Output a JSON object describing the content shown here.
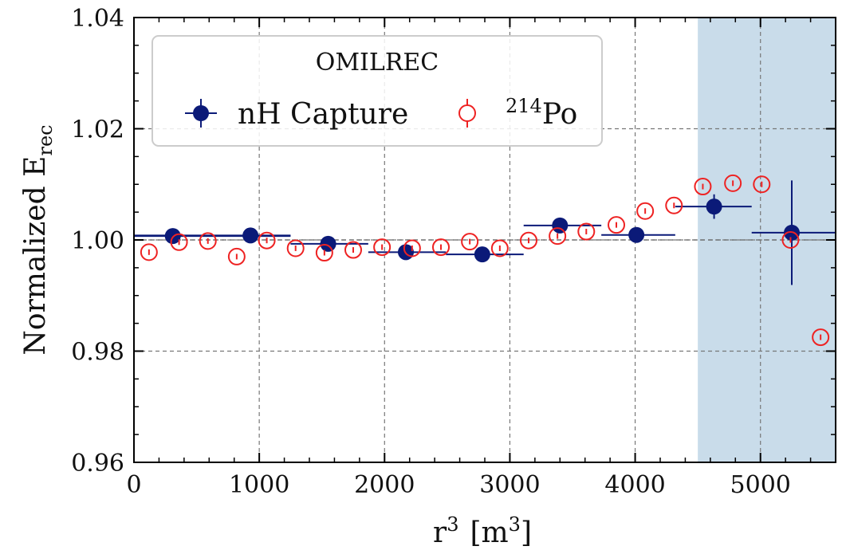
{
  "chart_data": {
    "type": "scatter",
    "xlabel": "r",
    "xlabel_sup": "3",
    "xlabel_unit_open": "[m",
    "xlabel_unit_sup": "3",
    "xlabel_unit_close": "]",
    "ylabel": "Normalized E",
    "ylabel_sub": "rec",
    "xlim": [
      0,
      5600
    ],
    "ylim": [
      0.96,
      1.04
    ],
    "xticks": [
      0,
      1000,
      2000,
      3000,
      4000,
      5000
    ],
    "xtick_labels": [
      "0",
      "1000",
      "2000",
      "3000",
      "4000",
      "5000"
    ],
    "yticks": [
      0.96,
      0.98,
      1.0,
      1.02,
      1.04
    ],
    "ytick_labels": [
      "0.96",
      "0.98",
      "1.00",
      "1.02",
      "1.04"
    ],
    "grid": true,
    "reference_line_y": 1.0,
    "shaded_region_x": [
      4500,
      5600
    ],
    "legend": {
      "title": "OMILREC",
      "placement": "top-left",
      "entries": [
        {
          "label": "nH Capture"
        },
        {
          "label_sup": "214",
          "label": "Po"
        }
      ]
    },
    "series": [
      {
        "name": "nH Capture",
        "marker": "filled-circle",
        "color": "#0b1a78",
        "points": [
          {
            "x": 310,
            "y": 1.0007,
            "xerr": [
              0,
              1250
            ],
            "yerr": 0.0003
          },
          {
            "x": 930,
            "y": 1.0008,
            "xerr": [
              0,
              1250
            ],
            "yerr": 0.0003
          },
          {
            "x": 1550,
            "y": 0.9993,
            "xerr": [
              1250,
              1870
            ],
            "yerr": 0.0003
          },
          {
            "x": 2170,
            "y": 0.9978,
            "xerr": [
              1870,
              2490
            ],
            "yerr": 0.0003
          },
          {
            "x": 2780,
            "y": 0.9974,
            "xerr": [
              2490,
              3110
            ],
            "yerr": 0.0003
          },
          {
            "x": 3400,
            "y": 1.0026,
            "xerr": [
              3110,
              3730
            ],
            "yerr": 0.0003
          },
          {
            "x": 4010,
            "y": 1.0009,
            "xerr": [
              3730,
              4320
            ],
            "yerr": 0.0003
          },
          {
            "x": 4630,
            "y": 1.006,
            "xerr": [
              4320,
              4930
            ],
            "yerr": 0.0022
          },
          {
            "x": 5250,
            "y": 1.0013,
            "xerr": [
              4930,
              5600
            ],
            "yerr": 0.0094
          }
        ]
      },
      {
        "name": "214Po",
        "marker": "open-circle",
        "color": "#ee2222",
        "points": [
          {
            "x": 120,
            "y": 0.9978,
            "yerr": 0.0005
          },
          {
            "x": 360,
            "y": 0.9996,
            "yerr": 0.0005
          },
          {
            "x": 590,
            "y": 0.9998,
            "yerr": 0.0005
          },
          {
            "x": 820,
            "y": 0.997,
            "yerr": 0.0005
          },
          {
            "x": 1060,
            "y": 0.9999,
            "yerr": 0.0005
          },
          {
            "x": 1290,
            "y": 0.9985,
            "yerr": 0.0005
          },
          {
            "x": 1520,
            "y": 0.9977,
            "yerr": 0.0005
          },
          {
            "x": 1750,
            "y": 0.9982,
            "yerr": 0.0005
          },
          {
            "x": 1980,
            "y": 0.9987,
            "yerr": 0.0005
          },
          {
            "x": 2220,
            "y": 0.9985,
            "yerr": 0.0005
          },
          {
            "x": 2450,
            "y": 0.9987,
            "yerr": 0.0005
          },
          {
            "x": 2680,
            "y": 0.9997,
            "yerr": 0.0005
          },
          {
            "x": 2920,
            "y": 0.9985,
            "yerr": 0.0005
          },
          {
            "x": 3150,
            "y": 0.9999,
            "yerr": 0.0005
          },
          {
            "x": 3380,
            "y": 1.0007,
            "yerr": 0.0005
          },
          {
            "x": 3610,
            "y": 1.0015,
            "yerr": 0.0005
          },
          {
            "x": 3850,
            "y": 1.0027,
            "yerr": 0.0005
          },
          {
            "x": 4080,
            "y": 1.0052,
            "yerr": 0.0005
          },
          {
            "x": 4310,
            "y": 1.0062,
            "yerr": 0.0005
          },
          {
            "x": 4540,
            "y": 1.0096,
            "yerr": 0.0005
          },
          {
            "x": 4780,
            "y": 1.0102,
            "yerr": 0.0005
          },
          {
            "x": 5010,
            "y": 1.01,
            "yerr": 0.0005
          },
          {
            "x": 5240,
            "y": 1.0,
            "yerr": 0.0005
          },
          {
            "x": 5480,
            "y": 0.9825,
            "yerr": 0.0005
          }
        ]
      }
    ]
  }
}
